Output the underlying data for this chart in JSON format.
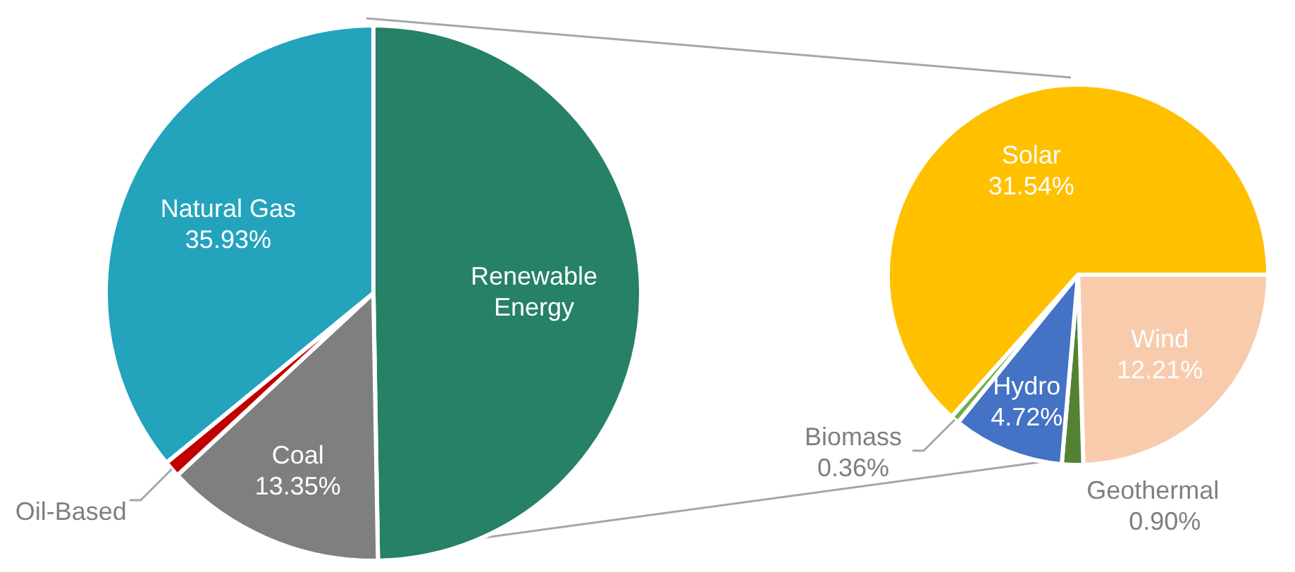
{
  "chart_data": [
    {
      "type": "pie",
      "categories": [
        "Renewable Energy",
        "Coal",
        "Oil-Based",
        "Natural Gas"
      ],
      "values": [
        49.73,
        13.35,
        0.99,
        35.93
      ],
      "colors": [
        "#268166",
        "#7f7f7f",
        "#c00000",
        "#23a3bc"
      ],
      "value_labels": [
        null,
        "13.35%",
        null,
        "35.93%"
      ]
    },
    {
      "type": "pie",
      "categories": [
        "Wind",
        "Geothermal",
        "Hydro",
        "Biomass",
        "Solar"
      ],
      "values": [
        12.21,
        0.9,
        4.72,
        0.36,
        31.54
      ],
      "colors": [
        "#f8cbad",
        "#548235",
        "#4472c4",
        "#70ad47",
        "#ffc000"
      ],
      "value_labels": [
        "12.21%",
        "0.90%",
        "4.72%",
        "0.36%",
        "31.54%"
      ]
    }
  ]
}
